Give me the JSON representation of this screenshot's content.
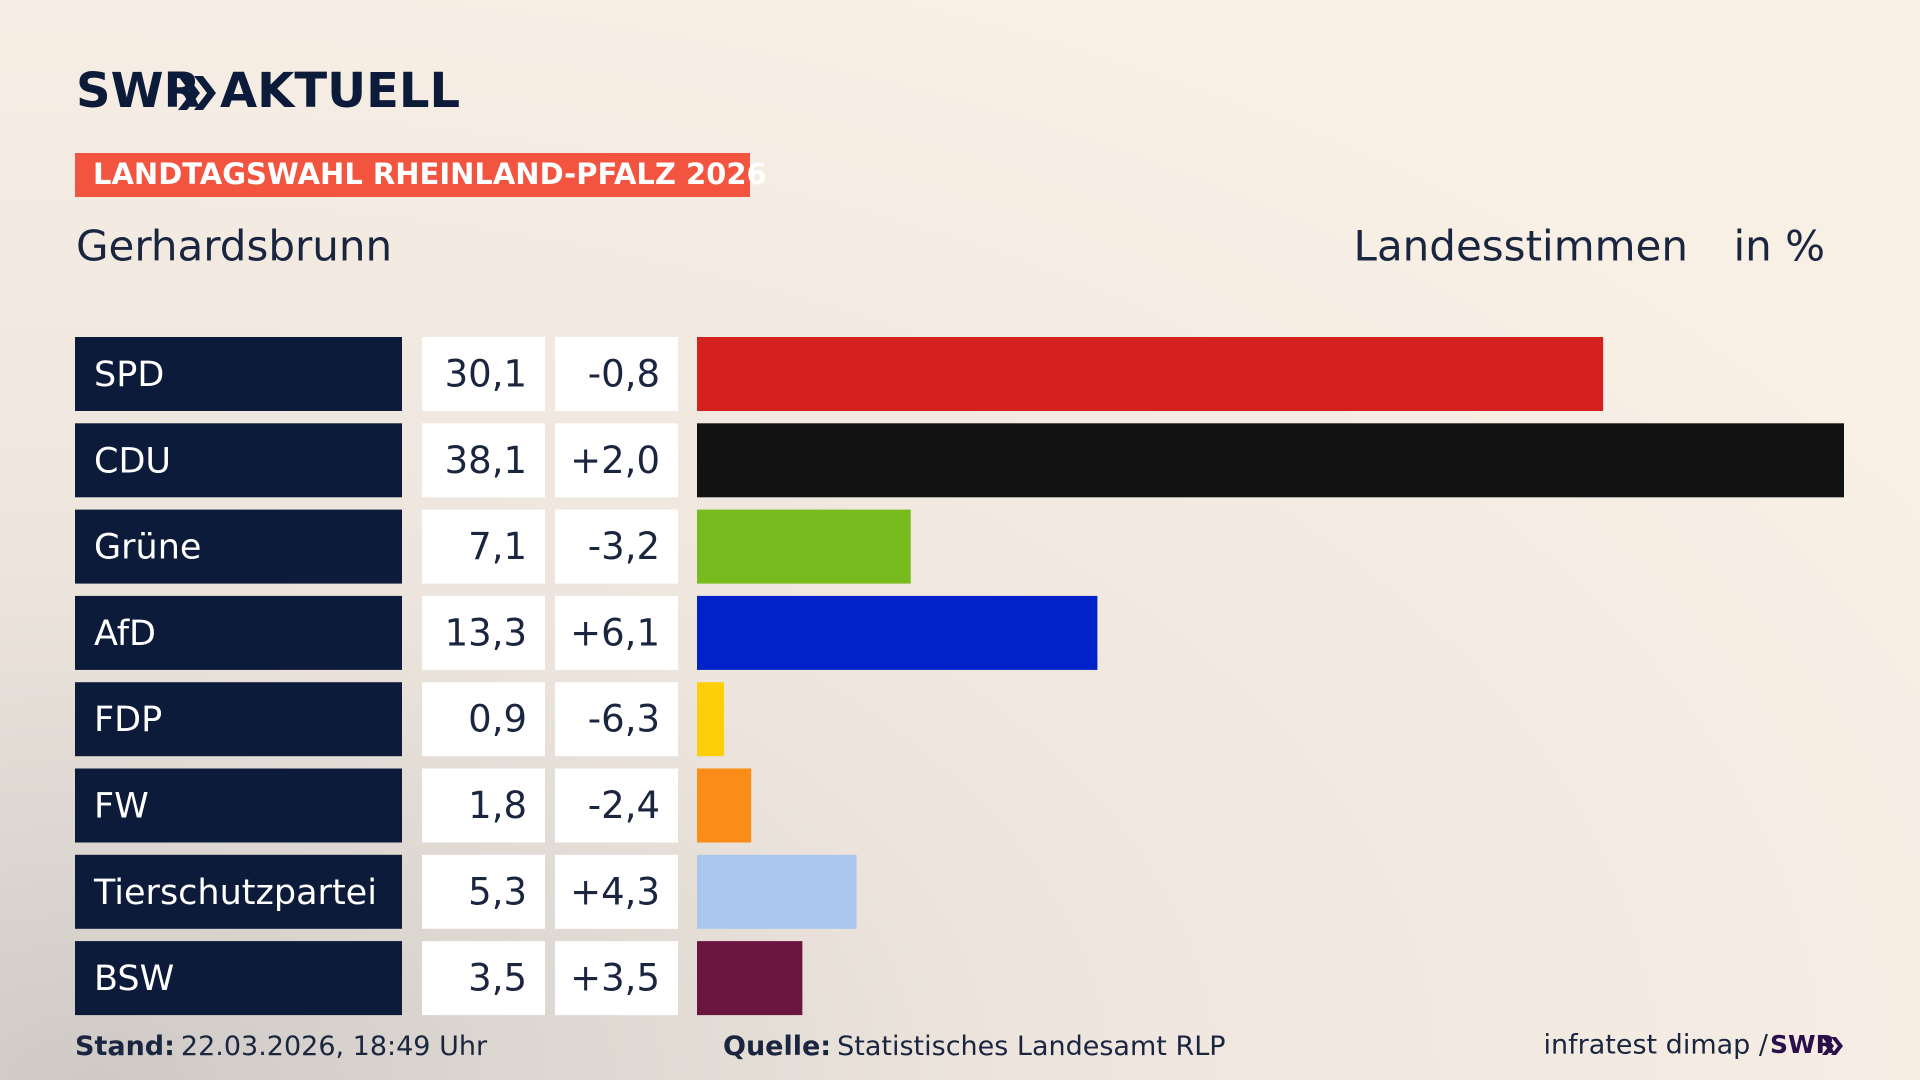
{
  "brand": {
    "name": "SWR",
    "product": "AKTUELL"
  },
  "chart_data": {
    "type": "hbar",
    "banner": "LANDTAGSWAHL RHEINLAND-PFALZ 2026",
    "title": "Gerhardsbrunn",
    "measure": "Landesstimmen",
    "unit": "in %",
    "categories": [
      "SPD",
      "CDU",
      "Grüne",
      "AfD",
      "FDP",
      "FW",
      "Tierschutzpartei",
      "BSW"
    ],
    "values": [
      30.1,
      38.1,
      7.1,
      13.3,
      0.9,
      1.8,
      5.3,
      3.5
    ],
    "value_labels": [
      "30,1",
      "38,1",
      "7,1",
      "13,3",
      "0,9",
      "1,8",
      "5,3",
      "3,5"
    ],
    "changes": [
      "-0,8",
      "+2,0",
      "-3,2",
      "+6,1",
      "-6,3",
      "-2,4",
      "+4,3",
      "+3,5"
    ],
    "colors": [
      "#d52020",
      "#121212",
      "#78bb1e",
      "#0022c8",
      "#fccf0a",
      "#fa8c17",
      "#aac7ee",
      "#6a1640"
    ]
  },
  "footer": {
    "stand_label": "Stand:",
    "stand": "22.03.2026, 18:49 Uhr",
    "source_label": "Quelle:",
    "source": "Statistisches Landesamt RLP",
    "credit": "infratest dimap /",
    "credit_brand": "SWR"
  }
}
